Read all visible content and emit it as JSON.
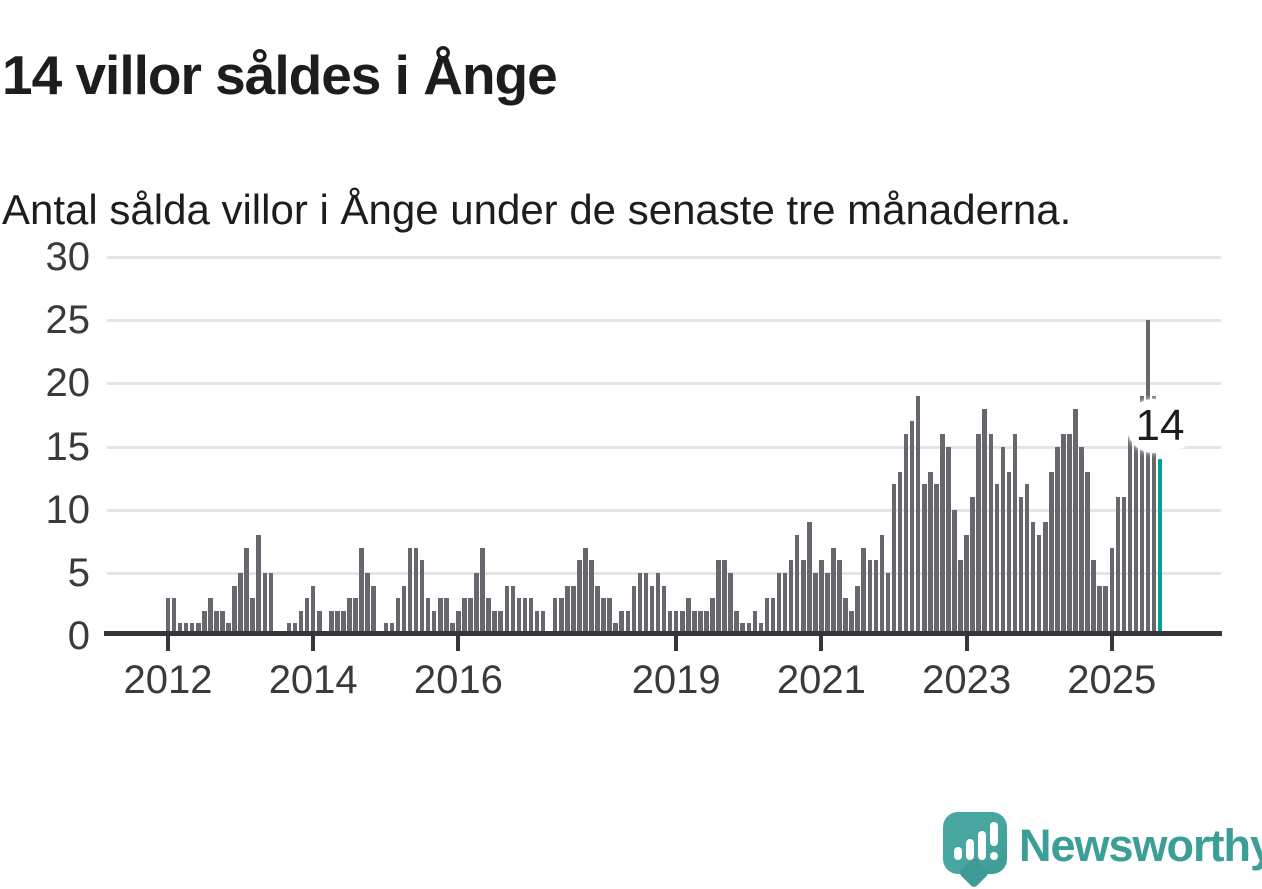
{
  "header": {
    "title": "14 villor såldes i Ånge",
    "subtitle": "Antal sålda villor i Ånge under de senaste tre månaderna."
  },
  "chart_data": {
    "type": "bar",
    "title": "14 villor såldes i Ånge",
    "subtitle": "Antal sålda villor i Ånge under de senaste tre månaderna.",
    "x_unit": "month",
    "values": [
      3,
      3,
      1,
      1,
      1,
      1,
      2,
      3,
      2,
      2,
      1,
      4,
      5,
      7,
      3,
      8,
      5,
      5,
      0,
      0,
      1,
      1,
      2,
      3,
      4,
      2,
      0,
      2,
      2,
      2,
      3,
      3,
      7,
      5,
      4,
      0,
      1,
      1,
      3,
      4,
      7,
      7,
      6,
      3,
      2,
      3,
      3,
      1,
      2,
      3,
      3,
      5,
      7,
      3,
      2,
      2,
      4,
      4,
      3,
      3,
      3,
      2,
      2,
      0,
      3,
      3,
      4,
      4,
      6,
      7,
      6,
      4,
      3,
      3,
      1,
      2,
      2,
      4,
      5,
      5,
      4,
      5,
      4,
      2,
      2,
      2,
      3,
      2,
      2,
      2,
      3,
      6,
      6,
      5,
      2,
      1,
      1,
      2,
      1,
      3,
      3,
      5,
      5,
      6,
      8,
      6,
      9,
      5,
      6,
      5,
      7,
      6,
      3,
      2,
      4,
      7,
      6,
      6,
      8,
      5,
      12,
      13,
      16,
      17,
      19,
      12,
      13,
      12,
      16,
      15,
      10,
      6,
      8,
      11,
      16,
      18,
      16,
      12,
      15,
      13,
      16,
      11,
      12,
      9,
      8,
      9,
      13,
      15,
      16,
      16,
      18,
      15,
      13,
      6,
      4,
      4,
      7,
      11,
      11,
      16,
      17,
      19,
      25,
      19,
      14
    ],
    "ylim": [
      0,
      30
    ],
    "yticks": [
      0,
      5,
      10,
      15,
      20,
      25,
      30
    ],
    "xticks": [
      {
        "label": "2012",
        "month_index": 0
      },
      {
        "label": "2014",
        "month_index": 24
      },
      {
        "label": "2016",
        "month_index": 48
      },
      {
        "label": "2019",
        "month_index": 84
      },
      {
        "label": "2021",
        "month_index": 108
      },
      {
        "label": "2023",
        "month_index": 132
      },
      {
        "label": "2025",
        "month_index": 156
      }
    ],
    "grid": true,
    "legend_position": "none",
    "bar_color": "#66686e",
    "highlight": {
      "index": 164,
      "value": 14,
      "label": "14",
      "color": "#00a099"
    }
  },
  "footer": {
    "brand": "Newsworthy",
    "brand_color": "#3b9e97",
    "logo_icon": "newsworthy-speech-bubble-chart-icon"
  }
}
